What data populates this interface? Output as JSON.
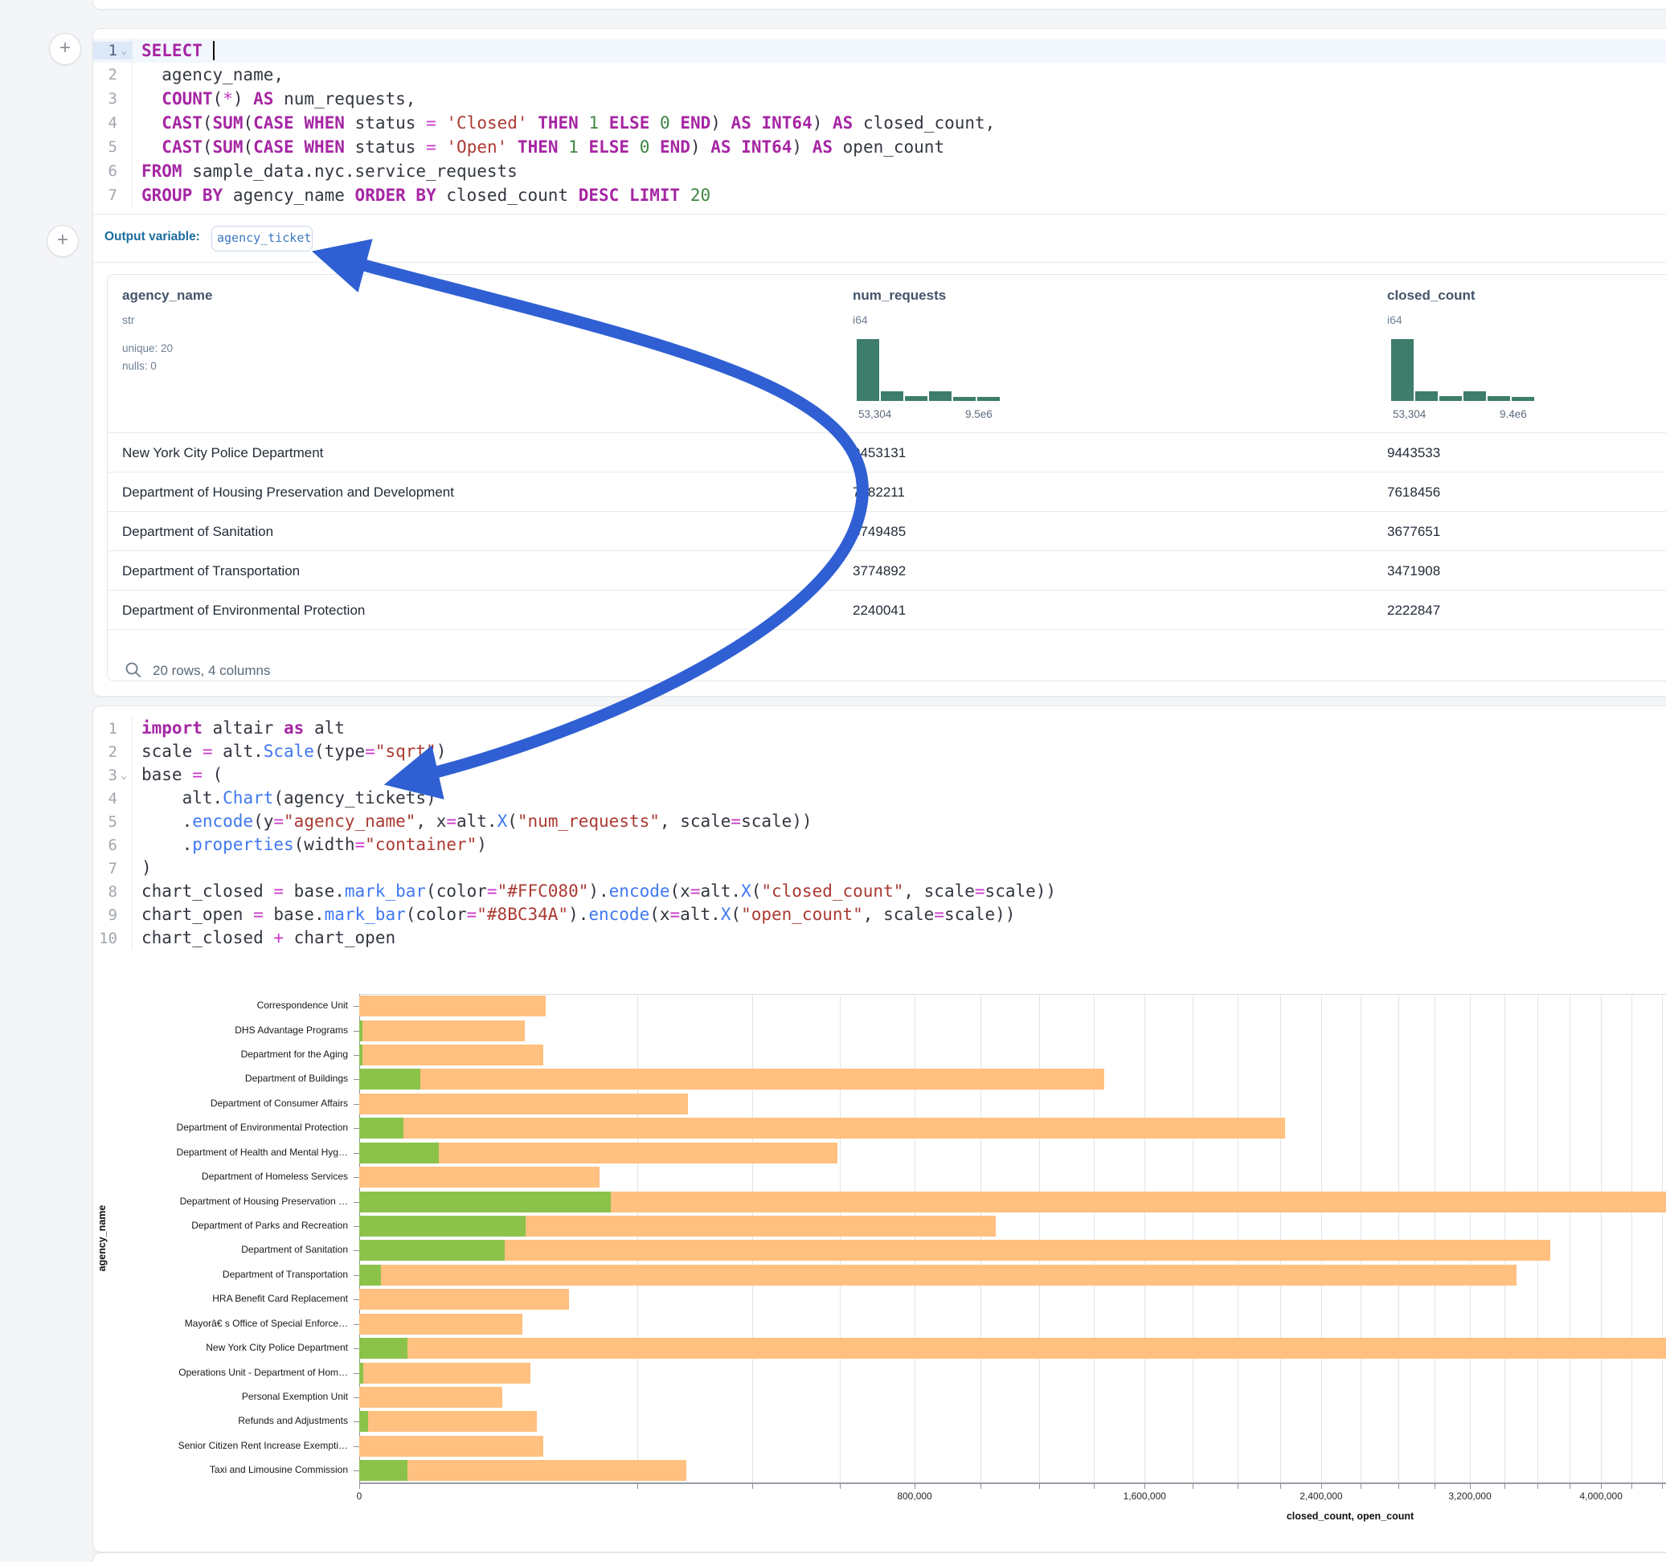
{
  "colors": {
    "keyword": "#a626a4",
    "function": "#4078f2",
    "string": "#ab3a33",
    "number": "#3c8742",
    "operator": "#c935c9",
    "bar_closed": "#FFC080",
    "bar_open": "#8BC34A",
    "histogram": "#3e7d6b",
    "arrow": "#2f5fd3"
  },
  "sql_cell": {
    "add_button_label": "+",
    "lines": [
      {
        "num": "1",
        "fold": true,
        "active": true,
        "cursor": true,
        "tokens": [
          [
            "kw",
            "SELECT"
          ],
          [
            "pl",
            " "
          ]
        ]
      },
      {
        "num": "2",
        "tokens": [
          [
            "pl",
            "  agency_name,"
          ]
        ]
      },
      {
        "num": "3",
        "tokens": [
          [
            "pl",
            "  "
          ],
          [
            "kw",
            "COUNT"
          ],
          [
            "pl",
            "("
          ],
          [
            "op",
            "*"
          ],
          [
            "pl",
            ") "
          ],
          [
            "kw",
            "AS"
          ],
          [
            "pl",
            " num_requests,"
          ]
        ]
      },
      {
        "num": "4",
        "tokens": [
          [
            "pl",
            "  "
          ],
          [
            "kw",
            "CAST"
          ],
          [
            "pl",
            "("
          ],
          [
            "kw",
            "SUM"
          ],
          [
            "pl",
            "("
          ],
          [
            "kw",
            "CASE"
          ],
          [
            "pl",
            " "
          ],
          [
            "kw",
            "WHEN"
          ],
          [
            "pl",
            " status "
          ],
          [
            "op",
            "="
          ],
          [
            "pl",
            " "
          ],
          [
            "st",
            "'Closed'"
          ],
          [
            "pl",
            " "
          ],
          [
            "kw",
            "THEN"
          ],
          [
            "pl",
            " "
          ],
          [
            "nu",
            "1"
          ],
          [
            "pl",
            " "
          ],
          [
            "kw",
            "ELSE"
          ],
          [
            "pl",
            " "
          ],
          [
            "nu",
            "0"
          ],
          [
            "pl",
            " "
          ],
          [
            "kw",
            "END"
          ],
          [
            "pl",
            ") "
          ],
          [
            "kw",
            "AS"
          ],
          [
            "pl",
            " "
          ],
          [
            "kw",
            "INT64"
          ],
          [
            "pl",
            ") "
          ],
          [
            "kw",
            "AS"
          ],
          [
            "pl",
            " closed_count,"
          ]
        ]
      },
      {
        "num": "5",
        "tokens": [
          [
            "pl",
            "  "
          ],
          [
            "kw",
            "CAST"
          ],
          [
            "pl",
            "("
          ],
          [
            "kw",
            "SUM"
          ],
          [
            "pl",
            "("
          ],
          [
            "kw",
            "CASE"
          ],
          [
            "pl",
            " "
          ],
          [
            "kw",
            "WHEN"
          ],
          [
            "pl",
            " status "
          ],
          [
            "op",
            "="
          ],
          [
            "pl",
            " "
          ],
          [
            "st",
            "'Open'"
          ],
          [
            "pl",
            " "
          ],
          [
            "kw",
            "THEN"
          ],
          [
            "pl",
            " "
          ],
          [
            "nu",
            "1"
          ],
          [
            "pl",
            " "
          ],
          [
            "kw",
            "ELSE"
          ],
          [
            "pl",
            " "
          ],
          [
            "nu",
            "0"
          ],
          [
            "pl",
            " "
          ],
          [
            "kw",
            "END"
          ],
          [
            "pl",
            ") "
          ],
          [
            "kw",
            "AS"
          ],
          [
            "pl",
            " "
          ],
          [
            "kw",
            "INT64"
          ],
          [
            "pl",
            ") "
          ],
          [
            "kw",
            "AS"
          ],
          [
            "pl",
            " open_count"
          ]
        ]
      },
      {
        "num": "6",
        "tokens": [
          [
            "kw",
            "FROM"
          ],
          [
            "pl",
            " sample_data.nyc.service_requests"
          ]
        ]
      },
      {
        "num": "7",
        "tokens": [
          [
            "kw",
            "GROUP"
          ],
          [
            "pl",
            " "
          ],
          [
            "kw",
            "BY"
          ],
          [
            "pl",
            " agency_name "
          ],
          [
            "kw",
            "ORDER"
          ],
          [
            "pl",
            " "
          ],
          [
            "kw",
            "BY"
          ],
          [
            "pl",
            " closed_count "
          ],
          [
            "kw",
            "DESC"
          ],
          [
            "pl",
            " "
          ],
          [
            "kw",
            "LIMIT"
          ],
          [
            "pl",
            " "
          ],
          [
            "nu",
            "20"
          ]
        ]
      }
    ],
    "output_variable_label": "Output variable:",
    "output_variable_name": "agency_tickets"
  },
  "table": {
    "columns": [
      {
        "name": "agency_name",
        "type": "str",
        "stats": [
          "unique: 20",
          "nulls: 0"
        ]
      },
      {
        "name": "num_requests",
        "type": "i64",
        "hist": [
          1,
          0.16,
          0.08,
          0.15,
          0.07,
          0.06
        ],
        "hist_min": "53,304",
        "hist_max": "9.5e6"
      },
      {
        "name": "closed_count",
        "type": "i64",
        "hist": [
          1,
          0.16,
          0.08,
          0.16,
          0.08,
          0.07
        ],
        "hist_min": "53,304",
        "hist_max": "9.4e6"
      }
    ],
    "rows": [
      {
        "agency_name": "New York City Police Department",
        "num_requests": "9453131",
        "closed_count": "9443533"
      },
      {
        "agency_name": "Department of Housing Preservation and Development",
        "num_requests": "7782211",
        "closed_count": "7618456"
      },
      {
        "agency_name": "Department of Sanitation",
        "num_requests": "3749485",
        "closed_count": "3677651"
      },
      {
        "agency_name": "Department of Transportation",
        "num_requests": "3774892",
        "closed_count": "3471908"
      },
      {
        "agency_name": "Department of Environmental Protection",
        "num_requests": "2240041",
        "closed_count": "2222847"
      }
    ],
    "footer": "20 rows, 4 columns"
  },
  "python_cell": {
    "lines": [
      {
        "num": "1",
        "tokens": [
          [
            "kw",
            "import"
          ],
          [
            "pl",
            " altair "
          ],
          [
            "kw",
            "as"
          ],
          [
            "pl",
            " alt"
          ]
        ]
      },
      {
        "num": "2",
        "tokens": [
          [
            "pl",
            "scale "
          ],
          [
            "op",
            "="
          ],
          [
            "pl",
            " alt."
          ],
          [
            "fn",
            "Scale"
          ],
          [
            "pl",
            "(type"
          ],
          [
            "op",
            "="
          ],
          [
            "st",
            "\"sqrt\""
          ],
          [
            "pl",
            ")"
          ]
        ]
      },
      {
        "num": "3",
        "fold": true,
        "tokens": [
          [
            "pl",
            "base "
          ],
          [
            "op",
            "="
          ],
          [
            "pl",
            " ("
          ]
        ]
      },
      {
        "num": "4",
        "tokens": [
          [
            "pl",
            "    alt."
          ],
          [
            "fn",
            "Chart"
          ],
          [
            "pl",
            "(agency_tickets)"
          ]
        ]
      },
      {
        "num": "5",
        "tokens": [
          [
            "pl",
            "    ."
          ],
          [
            "fn",
            "encode"
          ],
          [
            "pl",
            "(y"
          ],
          [
            "op",
            "="
          ],
          [
            "st",
            "\"agency_name\""
          ],
          [
            "pl",
            ", x"
          ],
          [
            "op",
            "="
          ],
          [
            "pl",
            "alt."
          ],
          [
            "fn",
            "X"
          ],
          [
            "pl",
            "("
          ],
          [
            "st",
            "\"num_requests\""
          ],
          [
            "pl",
            ", scale"
          ],
          [
            "op",
            "="
          ],
          [
            "pl",
            "scale))"
          ]
        ]
      },
      {
        "num": "6",
        "tokens": [
          [
            "pl",
            "    ."
          ],
          [
            "fn",
            "properties"
          ],
          [
            "pl",
            "(width"
          ],
          [
            "op",
            "="
          ],
          [
            "st",
            "\"container\""
          ],
          [
            "pl",
            ")"
          ]
        ]
      },
      {
        "num": "7",
        "tokens": [
          [
            "pl",
            ")"
          ]
        ]
      },
      {
        "num": "8",
        "tokens": [
          [
            "pl",
            "chart_closed "
          ],
          [
            "op",
            "="
          ],
          [
            "pl",
            " base."
          ],
          [
            "fn",
            "mark_bar"
          ],
          [
            "pl",
            "(color"
          ],
          [
            "op",
            "="
          ],
          [
            "st",
            "\"#FFC080\""
          ],
          [
            "pl",
            ")."
          ],
          [
            "fn",
            "encode"
          ],
          [
            "pl",
            "(x"
          ],
          [
            "op",
            "="
          ],
          [
            "pl",
            "alt."
          ],
          [
            "fn",
            "X"
          ],
          [
            "pl",
            "("
          ],
          [
            "st",
            "\"closed_count\""
          ],
          [
            "pl",
            ", scale"
          ],
          [
            "op",
            "="
          ],
          [
            "pl",
            "scale))"
          ]
        ]
      },
      {
        "num": "9",
        "tokens": [
          [
            "pl",
            "chart_open "
          ],
          [
            "op",
            "="
          ],
          [
            "pl",
            " base."
          ],
          [
            "fn",
            "mark_bar"
          ],
          [
            "pl",
            "(color"
          ],
          [
            "op",
            "="
          ],
          [
            "st",
            "\"#8BC34A\""
          ],
          [
            "pl",
            ")."
          ],
          [
            "fn",
            "encode"
          ],
          [
            "pl",
            "(x"
          ],
          [
            "op",
            "="
          ],
          [
            "pl",
            "alt."
          ],
          [
            "fn",
            "X"
          ],
          [
            "pl",
            "("
          ],
          [
            "st",
            "\"open_count\""
          ],
          [
            "pl",
            ", scale"
          ],
          [
            "op",
            "="
          ],
          [
            "pl",
            "scale))"
          ]
        ]
      },
      {
        "num": "10",
        "tokens": [
          [
            "pl",
            "chart_closed "
          ],
          [
            "op",
            "+"
          ],
          [
            "pl",
            " chart_open"
          ]
        ]
      }
    ]
  },
  "chart_data": {
    "type": "bar",
    "orientation": "horizontal",
    "x_scale": "sqrt",
    "grid": true,
    "xlabel": "closed_count, open_count",
    "ylabel": "agency_name",
    "categories": [
      "Correspondence Unit",
      "DHS Advantage Programs",
      "Department for the Aging",
      "Department of Buildings",
      "Department of Consumer Affairs",
      "Department of Environmental Protection",
      "Department of Health and Mental Hyg…",
      "Department of Homeless Services",
      "Department of Housing Preservation …",
      "Department of Parks and Recreation",
      "Department of Sanitation",
      "Department of Transportation",
      "HRA Benefit Card Replacement",
      "Mayorâ€ s Office of Special Enforce…",
      "New York City Police Department",
      "Operations Unit - Department of Hom…",
      "Personal Exemption Unit",
      "Refunds and Adjustments",
      "Senior Citizen Rent Increase Exempti…",
      "Taxi and Limousine Commission"
    ],
    "series": [
      {
        "name": "closed_count",
        "color": "#FFC080",
        "values": [
          90000,
          71000,
          88000,
          1440000,
          280000,
          2222847,
          594000,
          150000,
          7618456,
          1050000,
          3677651,
          3471908,
          114000,
          69000,
          9443533,
          76000,
          53304,
          81800,
          87600,
          277000
        ]
      },
      {
        "name": "open_count",
        "color": "#8BC34A",
        "values": [
          0,
          30,
          30,
          9700,
          0,
          5000,
          16400,
          0,
          163755,
          72000,
          55000,
          1200,
          0,
          0,
          6000,
          40,
          0,
          200,
          0,
          6000
        ]
      }
    ],
    "x_tick_values": [
      0,
      800000,
      1600000,
      2400000,
      3200000,
      4000000
    ],
    "x_tick_labels": [
      "0",
      "800,000",
      "1,600,000",
      "2,400,000",
      "3,200,000",
      "4,000,000"
    ],
    "gridline_step": 200000,
    "xlim": [
      0,
      4430000
    ]
  },
  "arrow": {
    "color": "#2f5fd3",
    "connects": "output variable badge to alt.Chart(agency_tickets)"
  }
}
